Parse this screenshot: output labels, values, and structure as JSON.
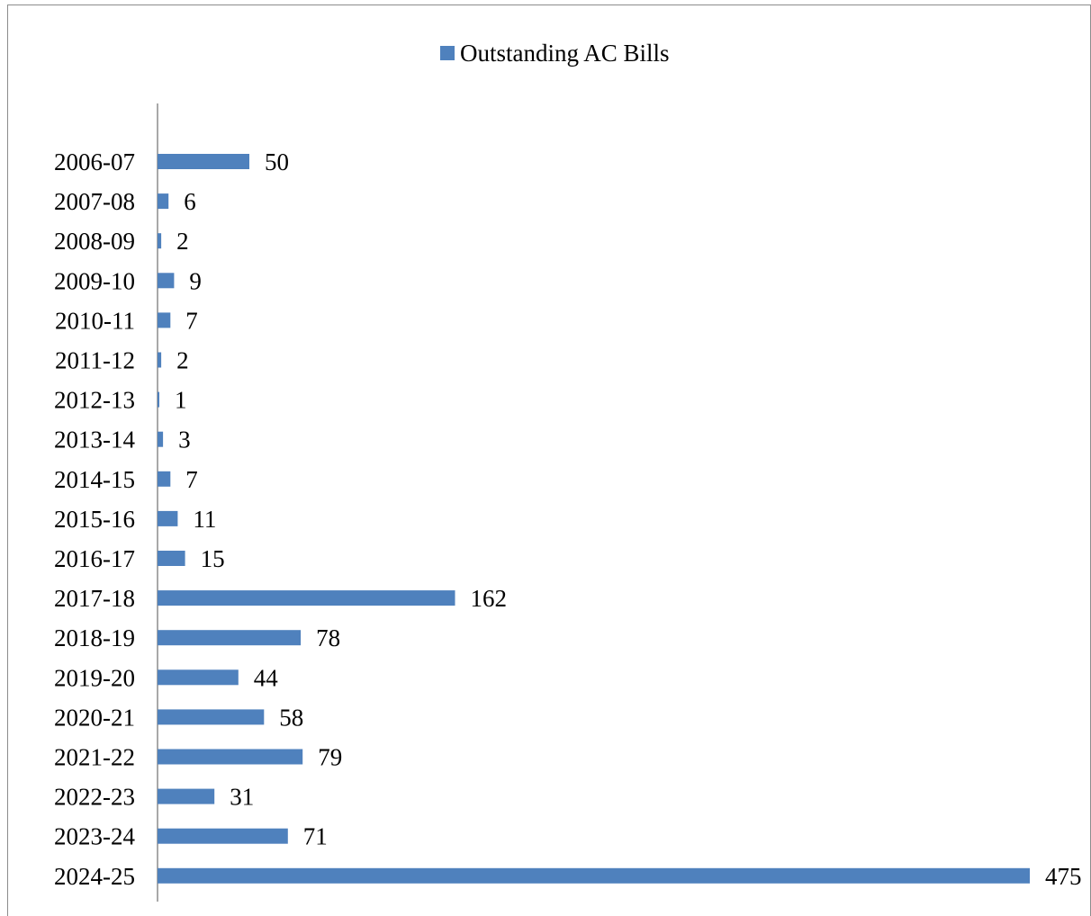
{
  "chart_data": {
    "type": "bar",
    "orientation": "horizontal",
    "categories": [
      "2006-07",
      "2007-08",
      "2008-09",
      "2009-10",
      "2010-11",
      "2011-12",
      "2012-13",
      "2013-14",
      "2014-15",
      "2015-16",
      "2016-17",
      "2017-18",
      "2018-19",
      "2019-20",
      "2020-21",
      "2021-22",
      "2022-23",
      "2023-24",
      "2024-25"
    ],
    "series": [
      {
        "name": "Outstanding AC Bills",
        "values": [
          50,
          6,
          2,
          9,
          7,
          2,
          1,
          3,
          7,
          11,
          15,
          162,
          78,
          44,
          58,
          79,
          31,
          71,
          475
        ],
        "color": "#4f81bd"
      }
    ],
    "data_labels": true,
    "legend_position": "top",
    "value_axis_visible": false,
    "grid": false,
    "xlim": [
      0,
      475
    ],
    "axis_color": "#8c8c8c"
  }
}
